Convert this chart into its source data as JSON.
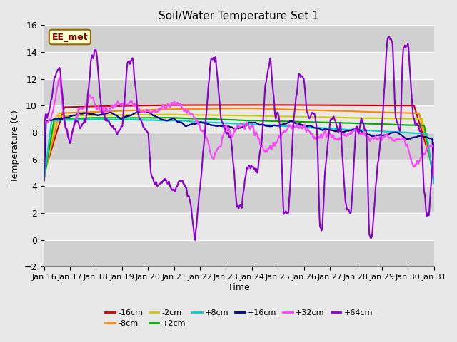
{
  "title": "Soil/Water Temperature Set 1",
  "xlabel": "Time",
  "ylabel": "Temperature (C)",
  "ylim": [
    -2,
    16
  ],
  "yticks": [
    -2,
    0,
    2,
    4,
    6,
    8,
    10,
    12,
    14,
    16
  ],
  "xlim": [
    0,
    15
  ],
  "xtick_labels": [
    "Jan 16",
    "Jan 17",
    "Jan 18",
    "Jan 19",
    "Jan 20",
    "Jan 21",
    "Jan 22",
    "Jan 23",
    "Jan 24",
    "Jan 25",
    "Jan 26",
    "Jan 27",
    "Jan 28",
    "Jan 29",
    "Jan 30",
    "Jan 31"
  ],
  "background_color": "#e8e8e8",
  "plot_bg_light": "#e8e8e8",
  "plot_bg_dark": "#d0d0d0",
  "annotation_box": {
    "text": "EE_met",
    "facecolor": "#ffffcc",
    "edgecolor": "#996600"
  },
  "series": [
    {
      "label": "-16cm",
      "color": "#cc0000"
    },
    {
      "label": "-8cm",
      "color": "#ff8800"
    },
    {
      "label": "-2cm",
      "color": "#cccc00"
    },
    {
      "label": "+2cm",
      "color": "#00aa00"
    },
    {
      "label": "+8cm",
      "color": "#00cccc"
    },
    {
      "label": "+16cm",
      "color": "#000088"
    },
    {
      "label": "+32cm",
      "color": "#ff44ff"
    },
    {
      "label": "+64cm",
      "color": "#8800cc"
    }
  ],
  "grid_color": "#ffffff",
  "figsize": [
    6.4,
    4.8
  ],
  "dpi": 100
}
